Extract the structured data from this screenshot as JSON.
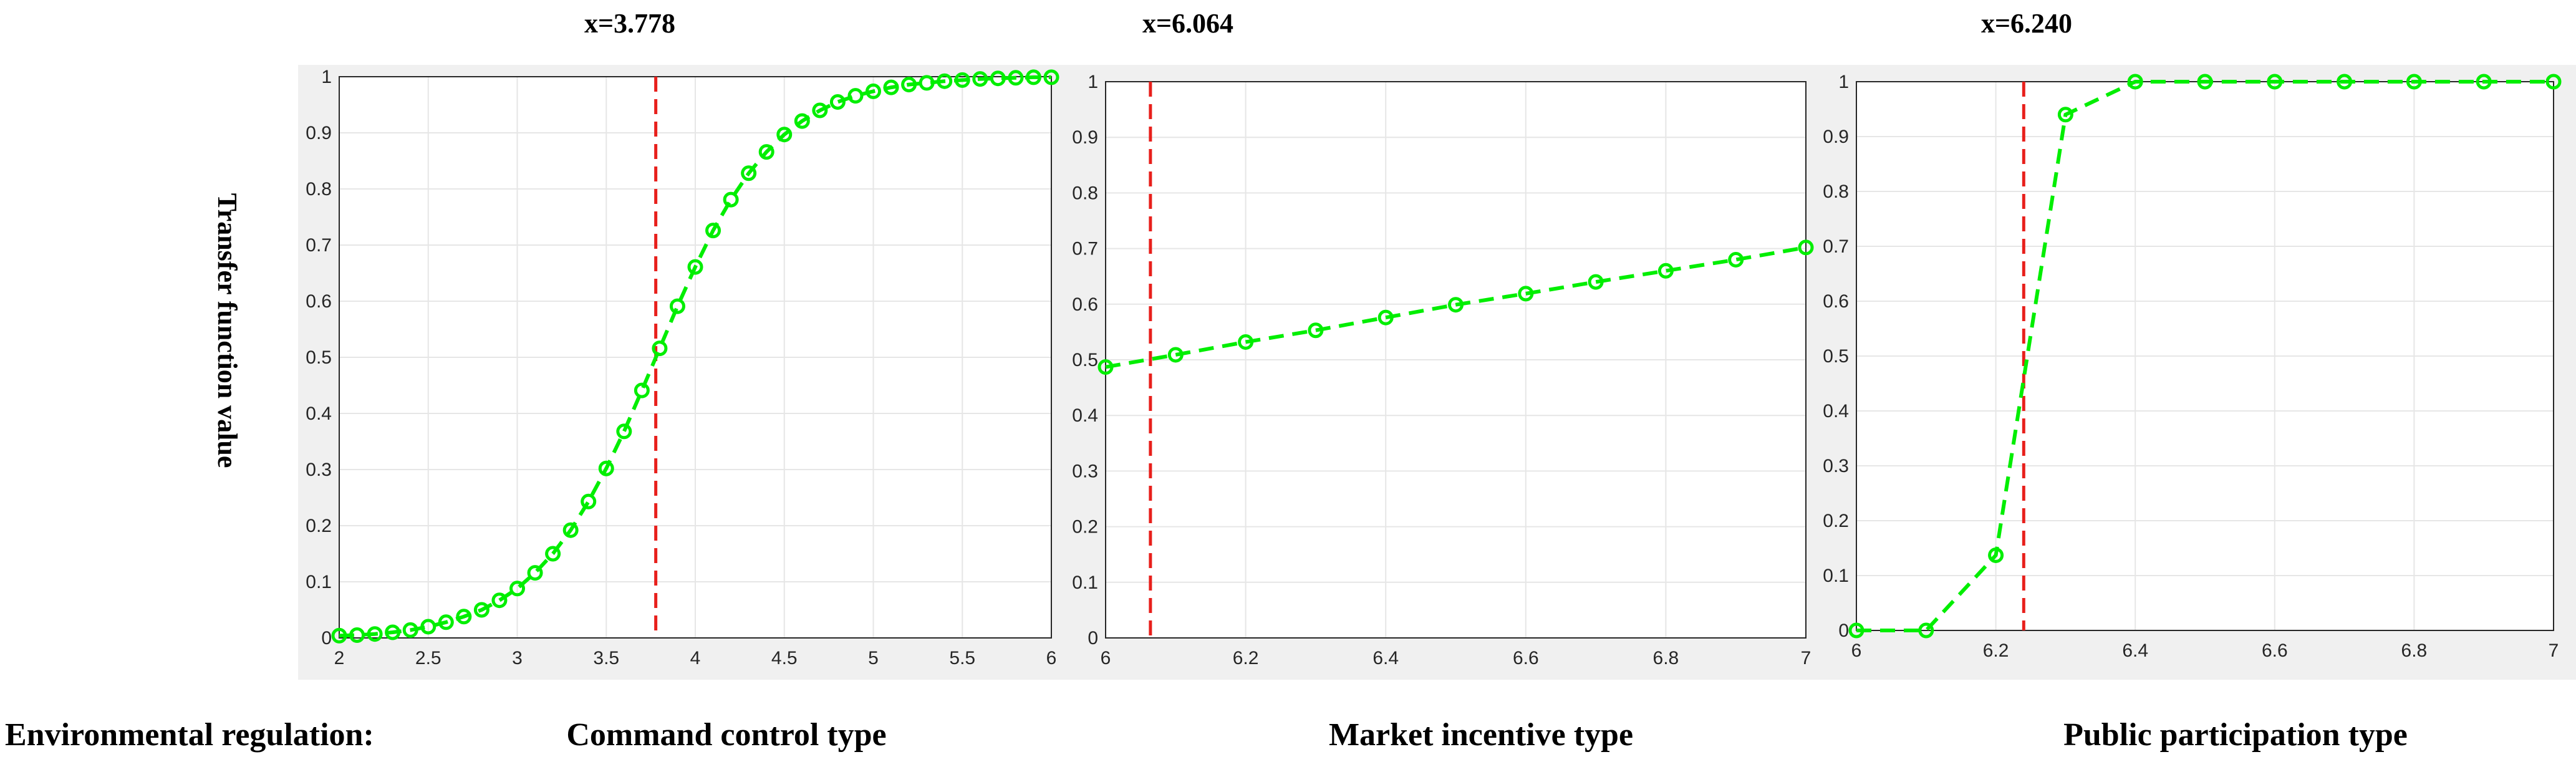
{
  "ylabel": "Transfer function value",
  "footer": {
    "lead": "Environmental regulation:"
  },
  "colors": {
    "series": "#00ee00",
    "threshold": "#e8201c",
    "axes_bg": "#ffffff",
    "figure_panel_bg": "#f0f0f0",
    "grid": "#e6e6e6"
  },
  "chart_data": [
    {
      "type": "line",
      "title": "x=3.778",
      "footer_label": "Command control type",
      "xlim": [
        2,
        6
      ],
      "ylim": [
        0,
        1
      ],
      "xticks": [
        "2",
        "2.5",
        "3",
        "3.5",
        "4",
        "4.5",
        "5",
        "5.5",
        "6"
      ],
      "yticks": [
        "0",
        "0.1",
        "0.2",
        "0.3",
        "0.4",
        "0.5",
        "0.6",
        "0.7",
        "0.8",
        "0.9",
        "1"
      ],
      "grid": true,
      "threshold_x": 3.778,
      "series": [
        {
          "x": [
            2.0,
            2.1,
            2.2,
            2.3,
            2.4,
            2.5,
            2.6,
            2.7,
            2.8,
            2.9,
            3.0,
            3.1,
            3.2,
            3.3,
            3.4,
            3.5,
            3.6,
            3.7,
            3.8,
            3.9,
            4.0,
            4.1,
            4.2,
            4.3,
            4.4,
            4.5,
            4.6,
            4.7,
            4.8,
            4.9,
            5.0,
            5.1,
            5.2,
            5.3,
            5.4,
            5.5,
            5.6,
            5.7,
            5.8,
            5.9,
            6.0
          ],
          "y": [
            0.004,
            0.005,
            0.007,
            0.01,
            0.014,
            0.02,
            0.028,
            0.038,
            0.05,
            0.067,
            0.088,
            0.116,
            0.15,
            0.192,
            0.243,
            0.302,
            0.368,
            0.441,
            0.516,
            0.591,
            0.661,
            0.726,
            0.781,
            0.828,
            0.866,
            0.897,
            0.921,
            0.94,
            0.955,
            0.966,
            0.974,
            0.981,
            0.986,
            0.989,
            0.992,
            0.994,
            0.996,
            0.997,
            0.998,
            0.999,
            0.999
          ]
        }
      ]
    },
    {
      "type": "line",
      "title": "x=6.064",
      "footer_label": "Market incentive type",
      "xlim": [
        6,
        7
      ],
      "ylim": [
        0,
        1
      ],
      "xticks": [
        "6",
        "6.2",
        "6.4",
        "6.6",
        "6.8",
        "7"
      ],
      "yticks": [
        "0",
        "0.1",
        "0.2",
        "0.3",
        "0.4",
        "0.5",
        "0.6",
        "0.7",
        "0.8",
        "0.9",
        "1"
      ],
      "grid": true,
      "threshold_x": 6.064,
      "series": [
        {
          "x": [
            6.0,
            6.1,
            6.2,
            6.3,
            6.4,
            6.5,
            6.6,
            6.7,
            6.8,
            6.9,
            7.0
          ],
          "y": [
            0.487,
            0.509,
            0.532,
            0.553,
            0.576,
            0.599,
            0.619,
            0.64,
            0.66,
            0.68,
            0.702
          ]
        }
      ]
    },
    {
      "type": "line",
      "title": "x=6.240",
      "footer_label": "Public participation type",
      "xlim": [
        6,
        7
      ],
      "ylim": [
        0,
        1
      ],
      "xticks": [
        "6",
        "6.2",
        "6.4",
        "6.6",
        "6.8",
        "7"
      ],
      "yticks": [
        "0",
        "0.1",
        "0.2",
        "0.3",
        "0.4",
        "0.5",
        "0.6",
        "0.7",
        "0.8",
        "0.9",
        "1"
      ],
      "grid": true,
      "threshold_x": 6.24,
      "series": [
        {
          "x": [
            6.0,
            6.1,
            6.2,
            6.3,
            6.4,
            6.5,
            6.6,
            6.7,
            6.8,
            6.9,
            7.0
          ],
          "y": [
            0.0,
            0.0,
            0.137,
            0.94,
            1.0,
            1.0,
            1.0,
            1.0,
            1.0,
            1.0,
            1.0
          ]
        }
      ]
    }
  ]
}
